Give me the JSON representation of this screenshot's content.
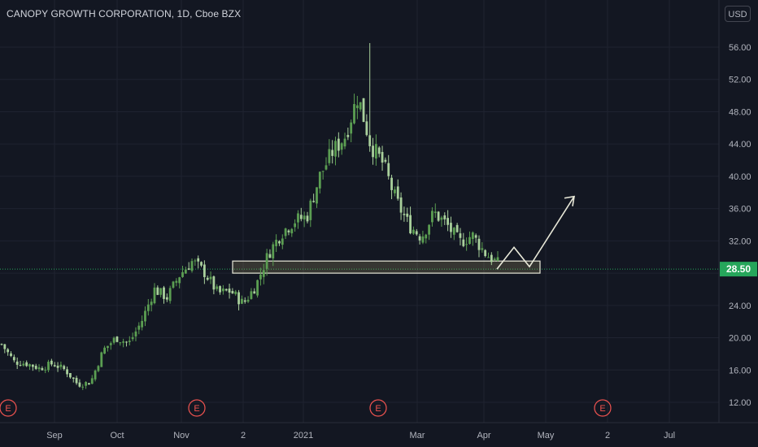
{
  "header": {
    "title": "CANOPY GROWTH CORPORATION, 1D, Cboe BZX",
    "currency": "USD"
  },
  "colors": {
    "background": "#131722",
    "grid": "#1f2330",
    "up": "#5b9e52",
    "down": "#a9d09c",
    "price_badge": "#26a65b",
    "event_marker": "#ef5350",
    "drawing": "#e8e8d8"
  },
  "chart_data": {
    "type": "candlestick",
    "title": "CANOPY GROWTH CORPORATION, 1D, Cboe BZX",
    "ylim": [
      10,
      58.5
    ],
    "y_ticks": [
      "12.00",
      "16.00",
      "20.00",
      "24.00",
      "28.00",
      "32.00",
      "36.00",
      "40.00",
      "44.00",
      "48.00",
      "52.00",
      "56.00"
    ],
    "x_tick_labels": [
      "Sep",
      "Oct",
      "Nov",
      "2",
      "2021",
      "Mar",
      "Apr",
      "May",
      "2",
      "Jul"
    ],
    "last_price": "28.50",
    "earnings_markers": [
      "E",
      "E",
      "E",
      "E"
    ],
    "support_zone": [
      28.0,
      29.5
    ],
    "projection_path": [
      28.5,
      31.2,
      28.8,
      37.5
    ],
    "price_path": [
      19.2,
      17.0,
      16.8,
      16.2,
      16.8,
      16.0,
      14.2,
      14.5,
      18.5,
      20.0,
      19.3,
      22.0,
      26.0,
      25.0,
      27.8,
      29.5,
      28.0,
      25.5,
      25.8,
      24.2,
      26.5,
      30.5,
      33.0,
      34.5,
      35.0,
      40.0,
      43.0,
      45.0,
      50.0,
      44.0,
      41.5,
      37.0,
      34.0,
      32.5,
      35.5,
      34.0,
      31.8,
      32.7,
      30.5,
      29.2
    ],
    "wick_highs": {
      "29": 56.5
    }
  },
  "events": {
    "labels": [
      "E",
      "E",
      "E",
      "E"
    ]
  }
}
